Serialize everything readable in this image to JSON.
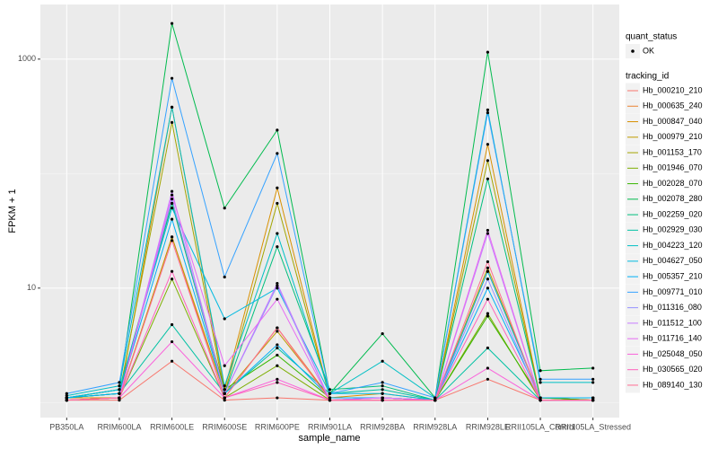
{
  "chart_data": {
    "type": "line",
    "x_label": "sample_name",
    "y_label": "FPKM + 1",
    "log_y": true,
    "grid": true,
    "categories": [
      "PB350LA",
      "RRIM600LA",
      "RRIM600LE",
      "RRIM600SE",
      "RRIM600PE",
      "RRIM901LA",
      "RRIM928BA",
      "RRIM928LA",
      "RRIM928LE",
      "RRII105LA_Control",
      "RRII105LA_Stressed"
    ],
    "ylim": [
      0.74,
      3000
    ],
    "yticks": [
      10,
      1000
    ],
    "point_color": "#000000",
    "legend_position": "right",
    "legend": {
      "status_title": "quant_status",
      "status_items": [
        "OK"
      ],
      "series_title": "tracking_id"
    },
    "series": [
      {
        "name": "Hb_000210_210",
        "color": "#F8766D",
        "values": [
          1.05,
          1.05,
          2.3,
          1.05,
          1.1,
          1.05,
          1.05,
          1.05,
          1.6,
          1.05,
          1.05
        ]
      },
      {
        "name": "Hb_000635_240",
        "color": "#EA8331",
        "values": [
          1.05,
          1.1,
          28,
          1.1,
          4.5,
          1.1,
          1.1,
          1.05,
          14,
          1.1,
          1.05
        ]
      },
      {
        "name": "Hb_000847_040",
        "color": "#D89000",
        "values": [
          1.1,
          1.1,
          380,
          1.3,
          75,
          1.1,
          1.2,
          1.05,
          180,
          1.1,
          1.05
        ]
      },
      {
        "name": "Hb_000979_210",
        "color": "#C09B00",
        "values": [
          1.05,
          1.1,
          28,
          1.2,
          4.2,
          1.1,
          1.1,
          1.05,
          15,
          1.1,
          1.05
        ]
      },
      {
        "name": "Hb_001153_170",
        "color": "#A3A500",
        "values": [
          1.1,
          1.2,
          280,
          1.2,
          55,
          1.1,
          1.1,
          1.05,
          130,
          1.1,
          1.1
        ]
      },
      {
        "name": "Hb_001946_070",
        "color": "#7CAE00",
        "values": [
          1.05,
          1.1,
          12,
          1.1,
          2.1,
          1.05,
          1.1,
          1.05,
          6,
          1.05,
          1.05
        ]
      },
      {
        "name": "Hb_002028_070",
        "color": "#39B600",
        "values": [
          1.1,
          1.2,
          55,
          1.3,
          2.6,
          1.1,
          1.1,
          1.05,
          5.7,
          1.1,
          1.05
        ]
      },
      {
        "name": "Hb_002078_280",
        "color": "#00BB4E",
        "values": [
          1.1,
          1.3,
          2050,
          50,
          240,
          1.2,
          4.0,
          1.1,
          1150,
          1.9,
          2.0
        ]
      },
      {
        "name": "Hb_002259_020",
        "color": "#00BF7D",
        "values": [
          1.1,
          1.3,
          55,
          1.2,
          23,
          1.3,
          1.4,
          1.05,
          90,
          1.1,
          1.1
        ]
      },
      {
        "name": "Hb_002929_030",
        "color": "#00C1A3",
        "values": [
          1.1,
          1.2,
          4.8,
          1.2,
          3.0,
          1.2,
          1.3,
          1.05,
          3.0,
          1.05,
          1.05
        ]
      },
      {
        "name": "Hb_004223_120",
        "color": "#00BFC4",
        "values": [
          1.15,
          1.4,
          380,
          1.4,
          30,
          1.2,
          2.3,
          1.1,
          360,
          1.5,
          1.5
        ]
      },
      {
        "name": "Hb_004627_050",
        "color": "#00BAE0",
        "values": [
          1.1,
          1.3,
          50,
          5.4,
          10,
          1.2,
          1.2,
          1.05,
          14,
          1.1,
          1.1
        ]
      },
      {
        "name": "Hb_005357_210",
        "color": "#00B0F6",
        "values": [
          1.1,
          1.2,
          40,
          1.2,
          3.2,
          1.1,
          1.1,
          1.05,
          10,
          1.1,
          1.1
        ]
      },
      {
        "name": "Hb_009771_010",
        "color": "#35A2FF",
        "values": [
          1.2,
          1.5,
          680,
          12.5,
          150,
          1.2,
          1.5,
          1.1,
          340,
          1.6,
          1.6
        ]
      },
      {
        "name": "Hb_011316_080",
        "color": "#9590FF",
        "values": [
          1.05,
          1.1,
          60,
          1.2,
          10.5,
          1.05,
          1.1,
          1.05,
          12,
          1.05,
          1.05
        ]
      },
      {
        "name": "Hb_011512_100",
        "color": "#C77CFF",
        "values": [
          1.05,
          1.1,
          70,
          1.2,
          11,
          1.05,
          1.1,
          1.05,
          30,
          1.05,
          1.05
        ]
      },
      {
        "name": "Hb_011716_140",
        "color": "#E76BF3",
        "values": [
          1.05,
          1.1,
          65,
          2.1,
          8,
          1.05,
          1.1,
          1.05,
          32,
          1.05,
          1.05
        ]
      },
      {
        "name": "Hb_025048_050",
        "color": "#FA62DB",
        "values": [
          1.05,
          1.1,
          3.4,
          1.1,
          1.6,
          1.05,
          1.05,
          1.05,
          2.0,
          1.05,
          1.05
        ]
      },
      {
        "name": "Hb_030565_020",
        "color": "#FF62BC",
        "values": [
          1.05,
          1.1,
          14,
          1.1,
          1.5,
          1.05,
          1.05,
          1.05,
          8,
          1.05,
          1.05
        ]
      },
      {
        "name": "Hb_089140_130",
        "color": "#FF6C91",
        "values": [
          1.05,
          1.1,
          26,
          1.1,
          4.5,
          1.05,
          1.05,
          1.05,
          17,
          1.05,
          1.05
        ]
      }
    ]
  }
}
